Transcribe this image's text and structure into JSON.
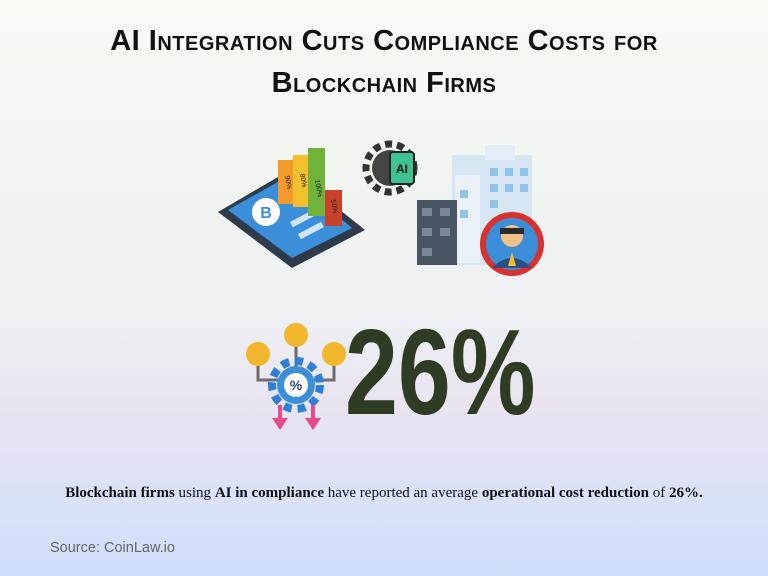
{
  "title": "AI Integration Cuts Compliance Costs for Blockchain Firms",
  "icons": {
    "bar_labels": [
      "90%",
      "80%",
      "100%",
      "50%"
    ],
    "tablet_symbol": "B",
    "chip_label": "AI",
    "gear_symbol": "%"
  },
  "statistic": "26%",
  "description": [
    "Blockchain firms",
    " using ",
    "AI in compliance",
    " have reported an average ",
    "operational cost reduction",
    " of ",
    "26%."
  ],
  "source": "Source: CoinLaw.io"
}
